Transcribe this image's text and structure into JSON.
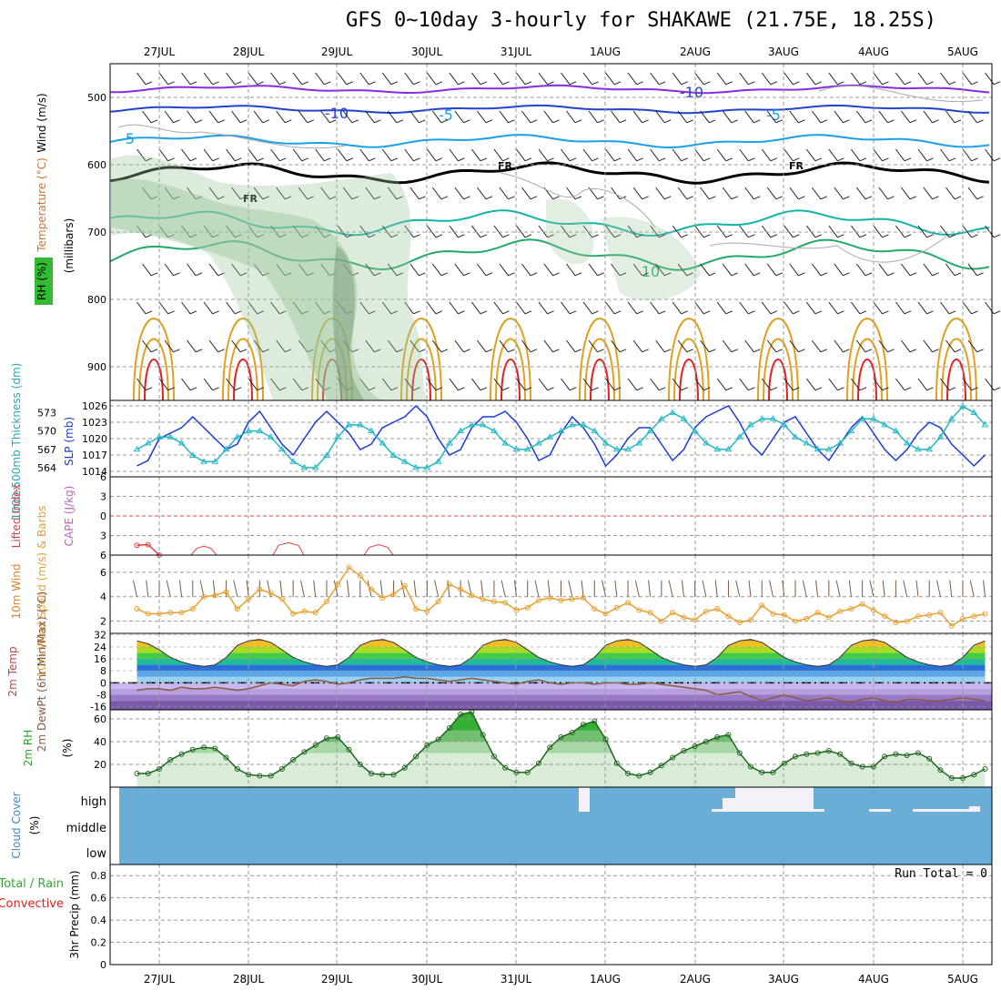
{
  "title": "GFS 0~10day 3-hourly for SHAKAWE (21.75E, 18.25S)",
  "date_labels": [
    "27JUL",
    "28JUL",
    "29JUL",
    "30JUL",
    "31JUL",
    "1AUG",
    "2AUG",
    "3AUG",
    "4AUG",
    "5AUG"
  ],
  "chart_data": [
    {
      "type": "contour",
      "panel": "upper-air",
      "ylabel_parts": [
        "Wind (m/s)",
        "Temperature (°C)",
        "RH (%)",
        "(millibars)"
      ],
      "y_ticks": [
        500,
        600,
        700,
        800,
        900
      ],
      "ylim": [
        450,
        950
      ],
      "contour_labels": [
        "-10",
        "-10",
        "-5",
        "-5",
        "-5",
        "FR",
        "FR",
        "FR",
        "10"
      ],
      "colors": {
        "purple": "#8a2be2",
        "blue": "#2244cc",
        "sky": "#1aa0e8",
        "teal": "#11b5a8",
        "green": "#22aa66",
        "orange": "#e0a020",
        "red": "#e02020",
        "freezing": "#000000",
        "rh": "#9cc69c"
      }
    },
    {
      "type": "line",
      "panel": "thickness-slp",
      "ylabel_left": "1000-500mb Thickness (dm)",
      "ylabel_right": "SLP (mb)",
      "thickness_ticks": [
        564,
        567,
        570,
        573
      ],
      "slp_ticks": [
        1014,
        1017,
        1020,
        1023,
        1026
      ],
      "series": [
        {
          "name": "SLP",
          "color": "#1a3ad8",
          "values": [
            1015,
            1016,
            1020,
            1021,
            1022,
            1024,
            1022,
            1020,
            1018,
            1019,
            1023,
            1025,
            1022,
            1019,
            1017,
            1020,
            1023,
            1025,
            1023,
            1021,
            1018,
            1019,
            1022,
            1023,
            1024,
            1026,
            1024,
            1020,
            1017,
            1018,
            1022,
            1024,
            1024,
            1025,
            1023,
            1020,
            1016,
            1017,
            1021,
            1024,
            1022,
            1019,
            1015,
            1017,
            1020,
            1022,
            1022,
            1019,
            1016,
            1018,
            1022,
            1024,
            1025,
            1026,
            1023,
            1019,
            1017,
            1020,
            1023,
            1024,
            1021,
            1018,
            1016,
            1019,
            1022,
            1024,
            1021,
            1018,
            1016,
            1018,
            1021,
            1023,
            1022,
            1019,
            1017,
            1015,
            1017,
            1020,
            1021,
            1022
          ]
        },
        {
          "name": "Thickness",
          "color": "#22b8c8",
          "values": [
            567,
            568,
            569,
            569,
            568,
            566,
            565,
            565,
            567,
            569,
            570,
            570,
            569,
            567,
            565,
            564,
            564,
            566,
            569,
            571,
            571,
            570,
            568,
            566,
            565,
            564,
            564,
            565,
            568,
            570,
            571,
            571,
            570,
            568,
            567,
            567,
            568,
            569,
            570,
            571,
            571,
            570,
            568,
            567,
            567,
            568,
            570,
            572,
            573,
            572,
            570,
            568,
            567,
            567,
            569,
            571,
            572,
            572,
            571,
            569,
            568,
            567,
            567,
            568,
            570,
            572,
            572,
            571,
            570,
            568,
            567,
            567,
            569,
            572,
            574,
            573,
            571,
            570,
            569,
            570
          ]
        }
      ]
    },
    {
      "type": "line",
      "panel": "instability",
      "ylabel_left": "Lifted Index",
      "ylabel_right": "CAPE (J/kg)",
      "li_ticks": [
        -6,
        -3,
        0,
        3,
        6
      ],
      "series": [
        {
          "name": "Lifted Index",
          "color": "#e04040",
          "values": [
            4.5,
            4.4,
            6,
            null,
            null,
            null,
            null,
            null,
            null,
            null,
            null,
            null,
            null,
            null,
            null,
            null,
            null,
            null,
            null,
            null,
            null,
            null,
            null,
            null,
            null,
            null,
            null,
            null,
            null,
            null,
            null,
            null,
            null,
            null,
            null,
            null,
            null,
            null,
            null,
            null,
            null,
            null,
            null,
            null,
            null,
            null,
            null,
            null,
            null,
            null,
            null,
            null,
            null,
            null,
            null,
            null,
            null,
            null,
            null,
            null,
            null,
            null,
            null,
            null,
            null,
            null,
            null,
            null,
            null,
            null,
            null,
            null,
            null,
            null,
            null,
            null,
            null,
            null,
            null,
            null
          ]
        }
      ]
    },
    {
      "type": "line",
      "panel": "wind-10m",
      "ylabel": "10m Wind Speed (m/s) & Barbs",
      "y_ticks": [
        2,
        4,
        6
      ],
      "series": [
        {
          "name": "10m Wind Speed",
          "color": "#e8a030",
          "values": [
            3.0,
            2.6,
            2.6,
            2.7,
            2.7,
            3.0,
            4.0,
            4.1,
            4.4,
            3.0,
            3.8,
            4.6,
            4.3,
            3.8,
            2.6,
            2.8,
            2.7,
            3.6,
            5.0,
            6.4,
            5.7,
            4.6,
            3.9,
            4.2,
            4.9,
            3.0,
            2.8,
            3.6,
            5.0,
            4.6,
            4.1,
            3.8,
            3.6,
            3.5,
            2.9,
            3.1,
            3.7,
            3.9,
            3.7,
            3.8,
            3.9,
            3.0,
            2.6,
            3.1,
            3.5,
            2.9,
            2.7,
            2.0,
            2.7,
            2.3,
            2.1,
            2.8,
            3.0,
            2.4,
            1.9,
            2.1,
            3.3,
            2.6,
            2.5,
            2.0,
            2.2,
            2.7,
            2.3,
            2.8,
            3.0,
            3.4,
            2.9,
            2.4,
            1.9,
            2.0,
            2.4,
            2.5,
            2.7,
            1.6,
            2.2,
            2.4,
            2.6,
            2.7,
            2.4,
            1.9
          ]
        }
      ]
    },
    {
      "type": "area",
      "panel": "temperature-2m",
      "ylabel": "2m Temp 2m DewPt (6hr Min/Max) (°C)",
      "y_ticks": [
        -16,
        -8,
        0,
        8,
        16,
        24,
        32
      ],
      "series": [
        {
          "name": "2m Temp",
          "values": [
            28,
            26,
            22,
            17,
            14,
            12,
            11,
            12,
            17,
            25,
            28,
            29,
            27,
            22,
            17,
            14,
            12,
            11,
            12,
            17,
            25,
            28,
            29,
            27,
            22,
            17,
            14,
            12,
            11,
            12,
            17,
            25,
            28,
            29,
            27,
            22,
            17,
            14,
            12,
            11,
            12,
            17,
            25,
            28,
            29,
            27,
            22,
            17,
            14,
            12,
            11,
            12,
            17,
            25,
            28,
            29,
            27,
            22,
            17,
            14,
            12,
            11,
            12,
            17,
            25,
            28,
            29,
            27,
            22,
            17,
            14,
            12,
            11,
            12,
            17,
            25,
            28,
            29,
            22,
            14
          ]
        },
        {
          "name": "2m DewPt",
          "values": [
            -5,
            -4,
            -4,
            -5,
            -3,
            -4,
            -4,
            -3,
            -4,
            -5,
            -4,
            -2,
            0,
            -1,
            -2,
            1,
            2,
            1,
            -1,
            0,
            2,
            3,
            3,
            3,
            4,
            3,
            3,
            2,
            1,
            2,
            3,
            2,
            1,
            0,
            -1,
            1,
            2,
            0,
            -1,
            0,
            0,
            -1,
            0,
            0,
            -1,
            -1,
            0,
            -1,
            -2,
            -3,
            -4,
            -5,
            -8,
            -7,
            -6,
            -9,
            -12,
            -10,
            -8,
            -10,
            -12,
            -11,
            -10,
            -12,
            -13,
            -11,
            -10,
            -12,
            -13,
            -11,
            -11,
            -12,
            -12,
            -11,
            -10,
            -11,
            -12,
            -10,
            -9,
            -9
          ]
        }
      ]
    },
    {
      "type": "area",
      "panel": "rh-2m",
      "ylabel": "2m RH (%)",
      "y_ticks": [
        20,
        40,
        60
      ],
      "series": [
        {
          "name": "2m RH",
          "color": "#33a033",
          "values": [
            12,
            12,
            16,
            24,
            29,
            33,
            35,
            34,
            26,
            16,
            11,
            10,
            10,
            16,
            24,
            31,
            37,
            43,
            44,
            33,
            20,
            12,
            11,
            11,
            17,
            27,
            37,
            42,
            52,
            64,
            66,
            46,
            27,
            17,
            13,
            13,
            21,
            35,
            44,
            48,
            55,
            58,
            42,
            21,
            12,
            10,
            13,
            19,
            26,
            32,
            36,
            40,
            44,
            46,
            30,
            18,
            13,
            13,
            21,
            27,
            29,
            30,
            32,
            29,
            21,
            18,
            18,
            27,
            29,
            28,
            30,
            25,
            15,
            8,
            8,
            11,
            16,
            22,
            27,
            29
          ]
        }
      ]
    },
    {
      "type": "heatmap",
      "panel": "cloud-cover",
      "ylabel": "Cloud Cover (%)",
      "levels": [
        "high",
        "middle",
        "low"
      ]
    },
    {
      "type": "bar",
      "panel": "precip",
      "ylabel_parts": [
        "Total / Rain",
        "Convective",
        "3hr Precip (mm)"
      ],
      "y_ticks": [
        0,
        0.2,
        0.4,
        0.6,
        0.8
      ],
      "run_total": "Run Total = 0",
      "values": []
    }
  ]
}
